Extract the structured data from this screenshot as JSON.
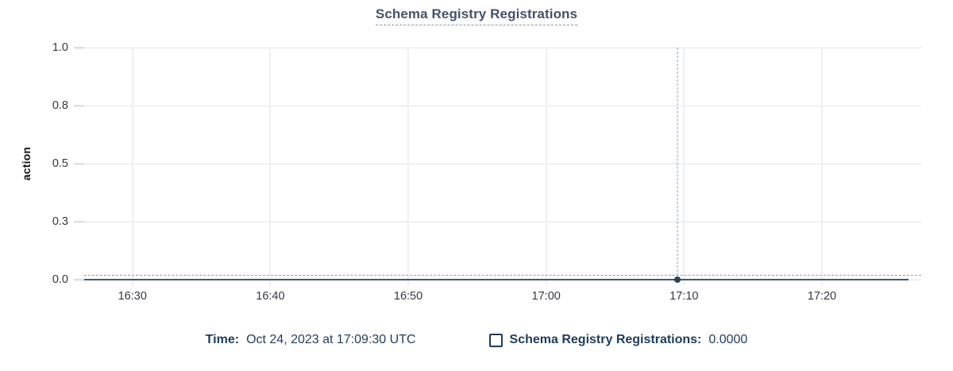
{
  "title": "Schema Registry Registrations",
  "legend": {
    "time_label": "Time:",
    "time_value": "Oct 24, 2023 at 17:09:30 UTC",
    "series_label": "Schema Registry Registrations:",
    "series_value": "0.0000"
  },
  "colors": {
    "title_text": "#41536b",
    "title_underline": "#8296ad",
    "legend_text": "#1c3c5f",
    "series_line": "#3e5a78",
    "series_point": "#2b4258",
    "crosshair": "#87a1bd",
    "gridline": "#eeeff1",
    "axis_tick": "#d6dade",
    "axis_label_text": "#343741"
  },
  "chart_data": {
    "type": "line",
    "title": "Schema Registry Registrations",
    "xlabel": "",
    "ylabel": "action",
    "ylim": [
      0,
      1
    ],
    "y_ticks": [
      {
        "value": 1.0,
        "label": "1.0"
      },
      {
        "value": 0.75,
        "label": "0.8"
      },
      {
        "value": 0.5,
        "label": "0.5"
      },
      {
        "value": 0.25,
        "label": "0.3"
      },
      {
        "value": 0.0,
        "label": "0.0"
      }
    ],
    "x_unit": "minutes after 16:00 UTC on Oct 24, 2023",
    "xlim": [
      26.5,
      87.2
    ],
    "x_ticks": [
      {
        "value": 30,
        "label": "16:30"
      },
      {
        "value": 40,
        "label": "16:40"
      },
      {
        "value": 50,
        "label": "16:50"
      },
      {
        "value": 60,
        "label": "17:00"
      },
      {
        "value": 70,
        "label": "17:10"
      },
      {
        "value": 80,
        "label": "17:20"
      }
    ],
    "series": [
      {
        "name": "Schema Registry Registrations",
        "x_start": 26.5,
        "x_end": 86.3,
        "y_constant": 0
      }
    ],
    "cursor": {
      "x": 69.5,
      "time": "17:09:30 UTC",
      "value": 0.0,
      "hline_y_fraction": 0.02
    },
    "grid": true,
    "legend_position": "bottom"
  }
}
